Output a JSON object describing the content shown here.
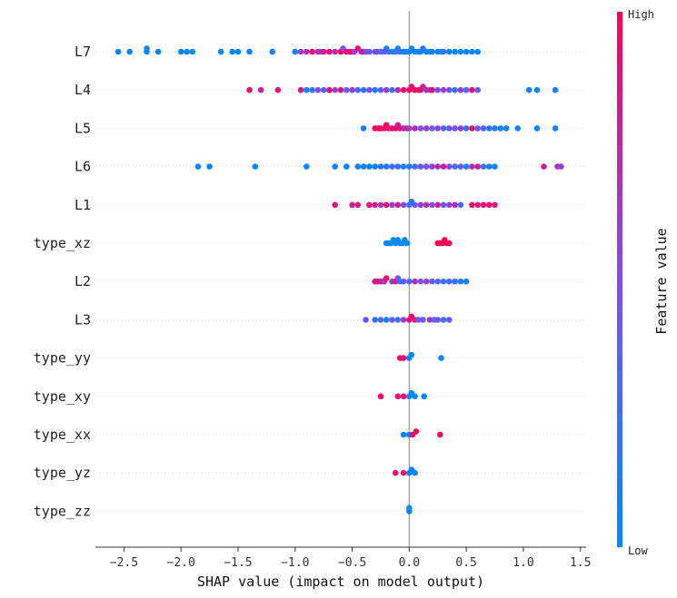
{
  "chart_data": {
    "type": "scatter",
    "subtype": "shap-beeswarm",
    "title": "",
    "xlabel": "SHAP value (impact on model output)",
    "ylabel": "",
    "xlim": [
      -2.75,
      1.55
    ],
    "xticks": [
      -2.5,
      -2.0,
      -1.5,
      -1.0,
      -0.5,
      0.0,
      0.5,
      1.0,
      1.5
    ],
    "xtick_labels": [
      "−2.5",
      "−2.0",
      "−1.5",
      "−1.0",
      "−0.5",
      "0.0",
      "0.5",
      "1.0",
      "1.5"
    ],
    "features": [
      "L7",
      "L4",
      "L5",
      "L6",
      "L1",
      "type_xz",
      "L2",
      "L3",
      "type_yy",
      "type_xy",
      "type_xx",
      "type_yz",
      "type_zz"
    ],
    "colorbar": {
      "title": "Feature value",
      "high_label": "High",
      "low_label": "Low",
      "low_color": "#008bfb",
      "mid_color": "#7d4ff0",
      "high_color": "#ff0051"
    },
    "series": [
      {
        "name": "L7",
        "points": [
          [
            -2.55,
            0.05
          ],
          [
            -2.45,
            0.05
          ],
          [
            -2.3,
            0.0
          ],
          [
            -2.3,
            0.08
          ],
          [
            -2.2,
            0.05
          ],
          [
            -2.0,
            0.05
          ],
          [
            -1.95,
            0.05
          ],
          [
            -1.9,
            0.0
          ],
          [
            -1.65,
            0.05
          ],
          [
            -1.55,
            0.05
          ],
          [
            -1.5,
            0.0
          ],
          [
            -1.4,
            0.05
          ],
          [
            -1.2,
            0.05
          ],
          [
            -1.0,
            0.05
          ],
          [
            -0.95,
            0.6
          ],
          [
            -0.9,
            0.7
          ],
          [
            -0.85,
            0.9
          ],
          [
            -0.8,
            0.8
          ],
          [
            -0.78,
            0.6
          ],
          [
            -0.75,
            0.85
          ],
          [
            -0.7,
            0.9
          ],
          [
            -0.65,
            0.7
          ],
          [
            -0.6,
            1.0
          ],
          [
            -0.58,
            0.5
          ],
          [
            -0.55,
            0.95
          ],
          [
            -0.52,
            0.8
          ],
          [
            -0.5,
            1.0
          ],
          [
            -0.48,
            0.6
          ],
          [
            -0.45,
            0.9
          ],
          [
            -0.42,
            0.7
          ],
          [
            -0.4,
            0.85
          ],
          [
            -0.38,
            0.55
          ],
          [
            -0.35,
            0.4
          ],
          [
            -0.3,
            0.3
          ],
          [
            -0.28,
            0.6
          ],
          [
            -0.25,
            0.2
          ],
          [
            -0.22,
            0.5
          ],
          [
            -0.2,
            0.1
          ],
          [
            -0.18,
            0.3
          ],
          [
            -0.15,
            0.05
          ],
          [
            -0.12,
            0.2
          ],
          [
            -0.1,
            0.1
          ],
          [
            -0.08,
            0.3
          ],
          [
            -0.05,
            0.0
          ],
          [
            -0.03,
            0.15
          ],
          [
            0.0,
            0.05
          ],
          [
            0.02,
            0.1
          ],
          [
            0.05,
            0.0
          ],
          [
            0.08,
            0.15
          ],
          [
            0.1,
            0.05
          ],
          [
            0.12,
            0.2
          ],
          [
            0.15,
            0.0
          ],
          [
            0.18,
            0.1
          ],
          [
            0.2,
            0.05
          ],
          [
            0.25,
            0.1
          ],
          [
            0.28,
            0.0
          ],
          [
            0.3,
            0.15
          ],
          [
            0.35,
            0.05
          ],
          [
            0.4,
            0.1
          ],
          [
            0.45,
            0.0
          ],
          [
            0.5,
            0.05
          ],
          [
            0.55,
            0.0
          ],
          [
            0.6,
            0.05
          ]
        ]
      },
      {
        "name": "L4",
        "points": [
          [
            -1.4,
            0.9
          ],
          [
            -1.3,
            0.8
          ],
          [
            -1.15,
            0.9
          ],
          [
            -0.95,
            0.85
          ],
          [
            -0.9,
            0.1
          ],
          [
            -0.85,
            0.2
          ],
          [
            -0.8,
            0.5
          ],
          [
            -0.75,
            0.3
          ],
          [
            -0.7,
            0.9
          ],
          [
            -0.65,
            0.6
          ],
          [
            -0.6,
            0.85
          ],
          [
            -0.55,
            0.4
          ],
          [
            -0.5,
            0.6
          ],
          [
            -0.45,
            0.3
          ],
          [
            -0.4,
            0.2
          ],
          [
            -0.35,
            0.5
          ],
          [
            -0.3,
            0.1
          ],
          [
            -0.25,
            0.4
          ],
          [
            -0.2,
            0.6
          ],
          [
            -0.15,
            0.2
          ],
          [
            -0.1,
            0.7
          ],
          [
            -0.05,
            0.9
          ],
          [
            0.0,
            0.95
          ],
          [
            0.02,
            0.9
          ],
          [
            0.05,
            1.0
          ],
          [
            0.08,
            0.85
          ],
          [
            0.1,
            0.9
          ],
          [
            0.12,
            0.8
          ],
          [
            0.15,
            0.7
          ],
          [
            0.18,
            0.6
          ],
          [
            0.2,
            0.9
          ],
          [
            0.25,
            0.5
          ],
          [
            0.3,
            0.6
          ],
          [
            0.35,
            0.4
          ],
          [
            0.4,
            0.2
          ],
          [
            0.45,
            0.6
          ],
          [
            0.5,
            0.3
          ],
          [
            0.55,
            0.9
          ],
          [
            0.6,
            0.4
          ],
          [
            1.05,
            0.1
          ],
          [
            1.12,
            0.05
          ],
          [
            1.28,
            0.1
          ]
        ]
      },
      {
        "name": "L5",
        "points": [
          [
            -0.4,
            0.1
          ],
          [
            -0.3,
            0.95
          ],
          [
            -0.27,
            1.0
          ],
          [
            -0.25,
            0.9
          ],
          [
            -0.22,
            0.95
          ],
          [
            -0.2,
            1.0
          ],
          [
            -0.18,
            0.85
          ],
          [
            -0.15,
            0.9
          ],
          [
            -0.12,
            0.95
          ],
          [
            -0.1,
            0.8
          ],
          [
            -0.08,
            0.9
          ],
          [
            -0.05,
            0.7
          ],
          [
            -0.02,
            0.8
          ],
          [
            0.0,
            0.6
          ],
          [
            0.05,
            0.7
          ],
          [
            0.1,
            0.5
          ],
          [
            0.15,
            0.6
          ],
          [
            0.2,
            0.4
          ],
          [
            0.25,
            0.55
          ],
          [
            0.3,
            0.3
          ],
          [
            0.35,
            0.5
          ],
          [
            0.4,
            0.4
          ],
          [
            0.45,
            0.6
          ],
          [
            0.5,
            0.2
          ],
          [
            0.55,
            0.9
          ],
          [
            0.6,
            0.5
          ],
          [
            0.65,
            0.3
          ],
          [
            0.7,
            0.1
          ],
          [
            0.75,
            0.2
          ],
          [
            0.8,
            0.0
          ],
          [
            0.85,
            0.1
          ],
          [
            0.95,
            0.05
          ],
          [
            1.12,
            0.05
          ],
          [
            1.28,
            0.05
          ]
        ]
      },
      {
        "name": "L6",
        "points": [
          [
            -1.85,
            0.05
          ],
          [
            -1.75,
            0.05
          ],
          [
            -1.35,
            0.05
          ],
          [
            -0.9,
            0.05
          ],
          [
            -0.65,
            0.05
          ],
          [
            -0.55,
            0.05
          ],
          [
            -0.45,
            0.1
          ],
          [
            -0.4,
            0.05
          ],
          [
            -0.35,
            0.1
          ],
          [
            -0.3,
            0.05
          ],
          [
            -0.25,
            0.2
          ],
          [
            -0.2,
            0.1
          ],
          [
            -0.15,
            0.3
          ],
          [
            -0.1,
            0.2
          ],
          [
            -0.05,
            0.1
          ],
          [
            0.0,
            0.15
          ],
          [
            0.05,
            0.3
          ],
          [
            0.1,
            0.4
          ],
          [
            0.15,
            0.5
          ],
          [
            0.2,
            0.6
          ],
          [
            0.25,
            0.7
          ],
          [
            0.3,
            0.8
          ],
          [
            0.35,
            0.5
          ],
          [
            0.4,
            0.3
          ],
          [
            0.45,
            0.4
          ],
          [
            0.5,
            0.1
          ],
          [
            0.55,
            0.7
          ],
          [
            0.6,
            0.8
          ],
          [
            0.65,
            0.2
          ],
          [
            0.7,
            0.1
          ],
          [
            0.75,
            0.05
          ],
          [
            1.18,
            0.8
          ],
          [
            1.3,
            0.7
          ],
          [
            1.33,
            0.6
          ]
        ]
      },
      {
        "name": "L1",
        "points": [
          [
            -0.65,
            0.9
          ],
          [
            -0.5,
            0.8
          ],
          [
            -0.45,
            0.85
          ],
          [
            -0.35,
            0.9
          ],
          [
            -0.3,
            0.8
          ],
          [
            -0.25,
            0.7
          ],
          [
            -0.2,
            0.9
          ],
          [
            -0.15,
            0.6
          ],
          [
            -0.1,
            0.8
          ],
          [
            -0.05,
            0.5
          ],
          [
            0.0,
            0.3
          ],
          [
            0.02,
            0.1
          ],
          [
            0.05,
            0.4
          ],
          [
            0.1,
            0.6
          ],
          [
            0.15,
            0.7
          ],
          [
            0.2,
            0.5
          ],
          [
            0.25,
            0.8
          ],
          [
            0.3,
            0.4
          ],
          [
            0.35,
            0.6
          ],
          [
            0.4,
            0.7
          ],
          [
            0.45,
            0.3
          ],
          [
            0.55,
            0.9
          ],
          [
            0.6,
            0.85
          ],
          [
            0.65,
            0.9
          ],
          [
            0.7,
            0.9
          ],
          [
            0.75,
            0.85
          ]
        ]
      },
      {
        "name": "type_xz",
        "points": [
          [
            -0.2,
            0.05
          ],
          [
            -0.18,
            0.0
          ],
          [
            -0.16,
            0.05
          ],
          [
            -0.14,
            0.0
          ],
          [
            -0.12,
            0.05
          ],
          [
            -0.1,
            0.0
          ],
          [
            -0.08,
            0.05
          ],
          [
            -0.06,
            0.0
          ],
          [
            -0.04,
            0.05
          ],
          [
            -0.02,
            0.0
          ],
          [
            0.25,
            1.0
          ],
          [
            0.27,
            0.95
          ],
          [
            0.29,
            1.0
          ],
          [
            0.31,
            0.95
          ],
          [
            0.33,
            1.0
          ],
          [
            0.35,
            0.95
          ]
        ]
      },
      {
        "name": "L2",
        "points": [
          [
            -0.3,
            0.9
          ],
          [
            -0.28,
            0.8
          ],
          [
            -0.25,
            0.85
          ],
          [
            -0.22,
            0.7
          ],
          [
            -0.2,
            0.9
          ],
          [
            -0.15,
            0.6
          ],
          [
            -0.12,
            0.8
          ],
          [
            -0.1,
            0.5
          ],
          [
            -0.08,
            0.2
          ],
          [
            -0.05,
            0.4
          ],
          [
            0.0,
            0.3
          ],
          [
            0.05,
            0.7
          ],
          [
            0.1,
            0.5
          ],
          [
            0.15,
            0.6
          ],
          [
            0.2,
            0.4
          ],
          [
            0.25,
            0.3
          ],
          [
            0.3,
            0.2
          ],
          [
            0.35,
            0.3
          ],
          [
            0.4,
            0.2
          ],
          [
            0.45,
            0.1
          ],
          [
            0.5,
            0.05
          ]
        ]
      },
      {
        "name": "L3",
        "points": [
          [
            -0.38,
            0.5
          ],
          [
            -0.3,
            0.2
          ],
          [
            -0.25,
            0.3
          ],
          [
            -0.2,
            0.1
          ],
          [
            -0.15,
            0.4
          ],
          [
            -0.1,
            0.2
          ],
          [
            -0.05,
            0.6
          ],
          [
            0.0,
            0.9
          ],
          [
            0.02,
            0.95
          ],
          [
            0.05,
            0.85
          ],
          [
            0.08,
            0.5
          ],
          [
            0.12,
            0.4
          ],
          [
            0.18,
            0.6
          ],
          [
            0.22,
            0.3
          ],
          [
            0.25,
            0.5
          ],
          [
            0.3,
            0.2
          ],
          [
            0.35,
            0.4
          ]
        ]
      },
      {
        "name": "type_yy",
        "points": [
          [
            -0.08,
            0.95
          ],
          [
            -0.05,
            0.9
          ],
          [
            0.0,
            0.05
          ],
          [
            0.02,
            0.0
          ],
          [
            0.28,
            0.05
          ]
        ]
      },
      {
        "name": "type_xy",
        "points": [
          [
            -0.25,
            0.95
          ],
          [
            -0.1,
            0.9
          ],
          [
            -0.05,
            0.9
          ],
          [
            0.0,
            0.05
          ],
          [
            0.02,
            0.0
          ],
          [
            0.05,
            0.05
          ],
          [
            0.13,
            0.05
          ]
        ]
      },
      {
        "name": "type_xx",
        "points": [
          [
            -0.05,
            0.05
          ],
          [
            0.0,
            0.05
          ],
          [
            0.03,
            0.95
          ],
          [
            0.06,
            0.9
          ],
          [
            0.27,
            0.95
          ]
        ]
      },
      {
        "name": "type_yz",
        "points": [
          [
            -0.12,
            0.9
          ],
          [
            -0.05,
            0.9
          ],
          [
            0.0,
            0.05
          ],
          [
            0.02,
            0.0
          ],
          [
            0.05,
            0.05
          ]
        ]
      },
      {
        "name": "type_zz",
        "points": [
          [
            0.0,
            0.05
          ],
          [
            0.0,
            0.0
          ]
        ]
      }
    ]
  }
}
